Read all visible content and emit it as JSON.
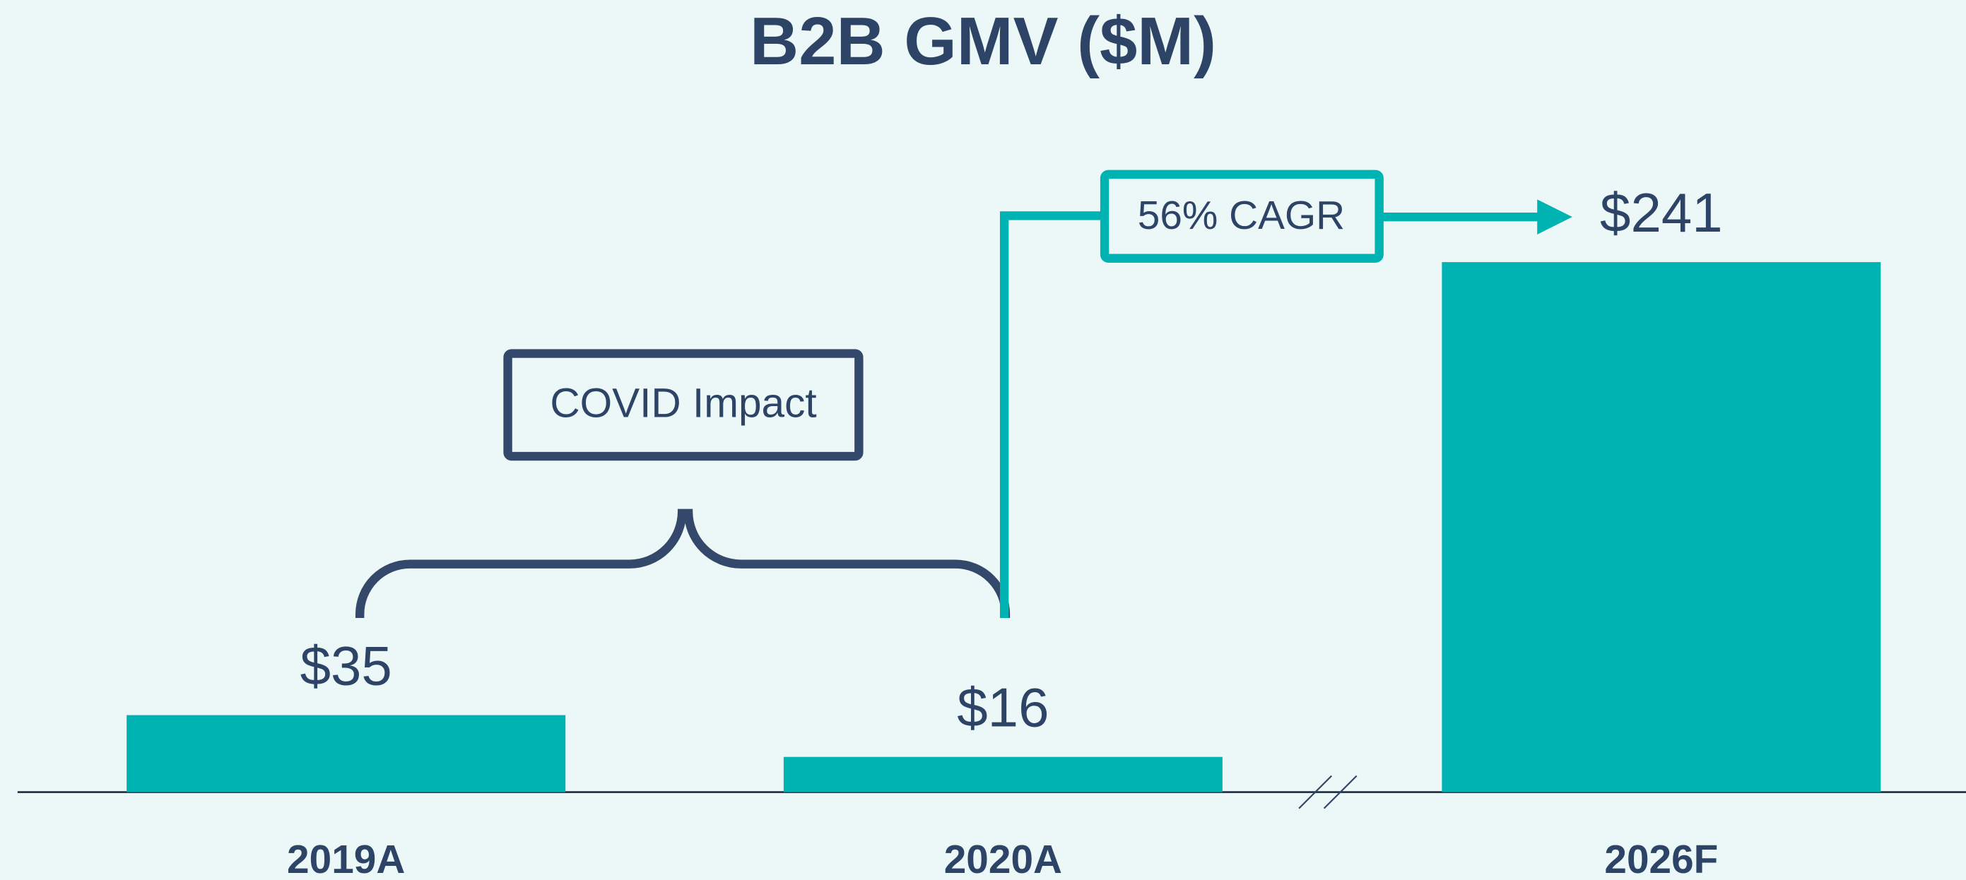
{
  "chart_data": {
    "type": "bar",
    "title": "B2B GMV ($M)",
    "categories": [
      "2019A",
      "2020A",
      "2026F"
    ],
    "values": [
      35,
      16,
      241
    ],
    "value_labels": [
      "$35",
      "$16",
      "$241"
    ],
    "color": "#00b3b3",
    "annotations": [
      "COVID Impact",
      "56% CAGR"
    ]
  }
}
